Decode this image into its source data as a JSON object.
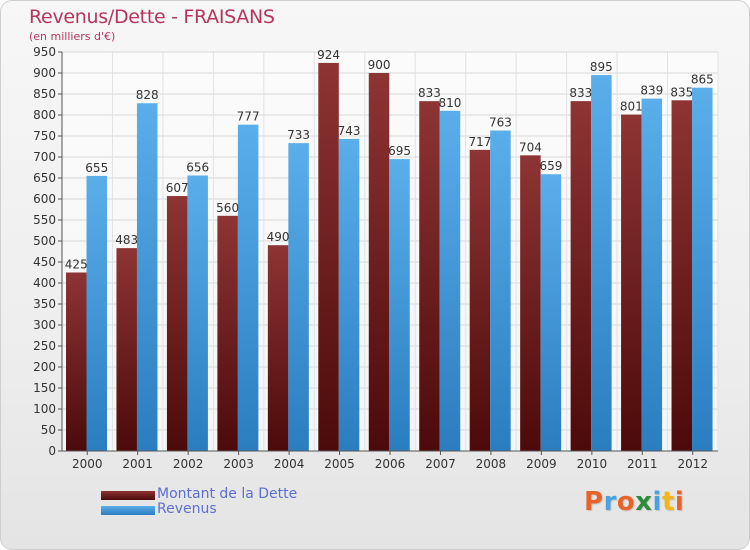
{
  "chart_data": {
    "type": "bar",
    "title": "Revenus/Dette - FRAISANS",
    "subtitle": "(en milliers d'€)",
    "categories": [
      "2000",
      "2001",
      "2002",
      "2003",
      "2004",
      "2005",
      "2006",
      "2007",
      "2008",
      "2009",
      "2010",
      "2011",
      "2012"
    ],
    "series": [
      {
        "name": "Montant de la Dette",
        "color": "#7a1f1f",
        "values": [
          425,
          483,
          607,
          560,
          490,
          924,
          900,
          833,
          717,
          704,
          833,
          801,
          835
        ]
      },
      {
        "name": "Revenus",
        "color": "#3f97d8",
        "values": [
          655,
          828,
          656,
          777,
          733,
          743,
          695,
          810,
          763,
          659,
          895,
          839,
          865
        ]
      }
    ],
    "ylim": [
      0,
      950
    ],
    "yticks": [
      0,
      50,
      100,
      150,
      200,
      250,
      300,
      350,
      400,
      450,
      500,
      550,
      600,
      650,
      700,
      750,
      800,
      850,
      900,
      950
    ],
    "grid": true,
    "legend_position": "bottom-left"
  },
  "logo": {
    "letters": [
      "P",
      "r",
      "o",
      "x",
      "i",
      "t",
      "i"
    ],
    "colors": [
      "#e8632a",
      "#4aa3df",
      "#e8632a",
      "#2e8b3a",
      "#4aa3df",
      "#f2b51d",
      "#e8632a"
    ]
  }
}
